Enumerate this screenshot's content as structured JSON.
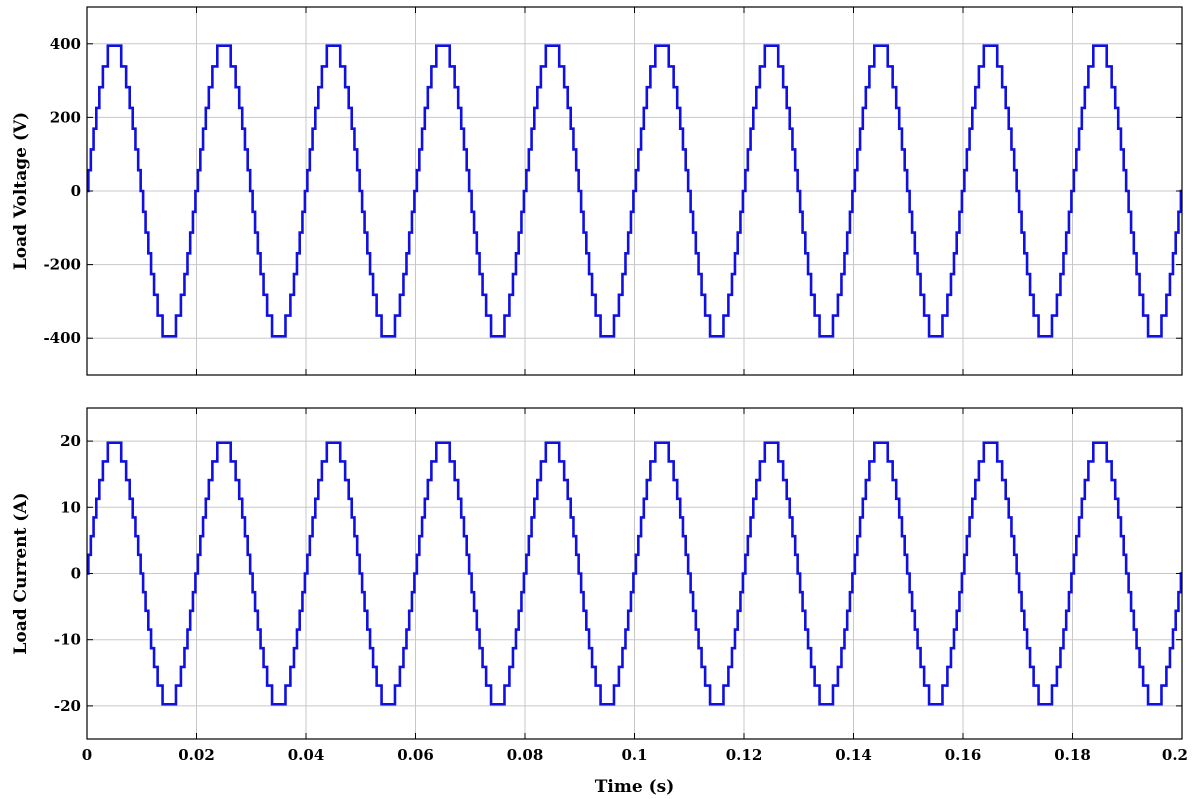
{
  "chart_data": [
    {
      "type": "line",
      "ylabel": "Load Voltage (V)",
      "xlabel": "",
      "xlim": [
        0,
        0.2
      ],
      "ylim": [
        -500,
        500
      ],
      "yticks": [
        -400,
        -200,
        0,
        200,
        400
      ],
      "ytick_labels": [
        "-400",
        "-200",
        "0",
        "200",
        "400"
      ],
      "xticks": [
        0,
        0.02,
        0.04,
        0.06,
        0.08,
        0.1,
        0.12,
        0.14,
        0.16,
        0.18,
        0.2
      ],
      "xtick_labels": [],
      "grid": true,
      "waveform": {
        "kind": "multilevel staircase sine",
        "amplitude": 395,
        "frequency_hz": 50,
        "levels_per_side": 7
      },
      "series_color": "#1010e0"
    },
    {
      "type": "line",
      "ylabel": "Load Current (A)",
      "xlabel": "Time (s)",
      "xlim": [
        0,
        0.2
      ],
      "ylim": [
        -25,
        25
      ],
      "yticks": [
        -20,
        -10,
        0,
        10,
        20
      ],
      "ytick_labels": [
        "-20",
        "-10",
        "0",
        "10",
        "20"
      ],
      "xticks": [
        0,
        0.02,
        0.04,
        0.06,
        0.08,
        0.1,
        0.12,
        0.14,
        0.16,
        0.18,
        0.2
      ],
      "xtick_labels": [
        "0",
        "0.02",
        "0.04",
        "0.06",
        "0.08",
        "0.1",
        "0.12",
        "0.14",
        "0.16",
        "0.18",
        "0.2"
      ],
      "grid": true,
      "waveform": {
        "kind": "multilevel staircase sine",
        "amplitude": 19.75,
        "frequency_hz": 50,
        "levels_per_side": 7
      },
      "series_color": "#1010e0"
    }
  ]
}
